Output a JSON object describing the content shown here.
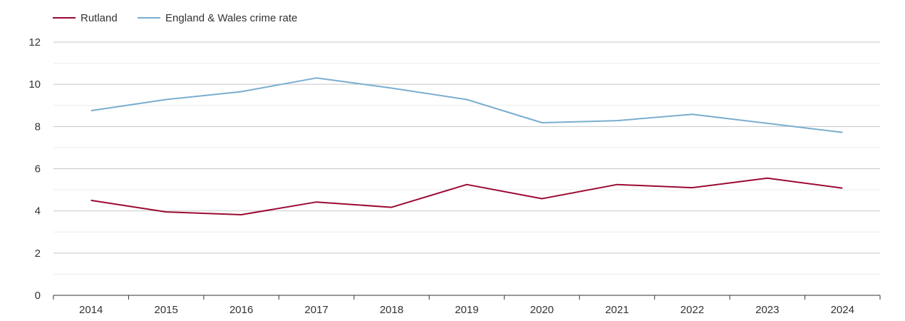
{
  "chart_data": {
    "type": "line",
    "title": "",
    "xlabel": "",
    "ylabel": "",
    "ylim": [
      0,
      12
    ],
    "y_ticks": [
      "0",
      "2",
      "4",
      "6",
      "8",
      "10",
      "12"
    ],
    "grid": true,
    "legend_position": "top-left",
    "categories": [
      "2014",
      "2015",
      "2016",
      "2017",
      "2018",
      "2019",
      "2020",
      "2021",
      "2022",
      "2023",
      "2024"
    ],
    "series": [
      {
        "name": "Rutland",
        "color": "#9b0a33",
        "values": [
          4.5,
          3.95,
          3.82,
          4.42,
          4.17,
          5.25,
          4.58,
          5.25,
          5.1,
          5.55,
          5.08
        ]
      },
      {
        "name": "England & Wales crime rate",
        "color": "#7aadcf",
        "values": [
          8.75,
          9.28,
          9.65,
          10.3,
          9.82,
          9.28,
          8.18,
          8.28,
          8.58,
          8.15,
          7.72
        ]
      }
    ]
  }
}
